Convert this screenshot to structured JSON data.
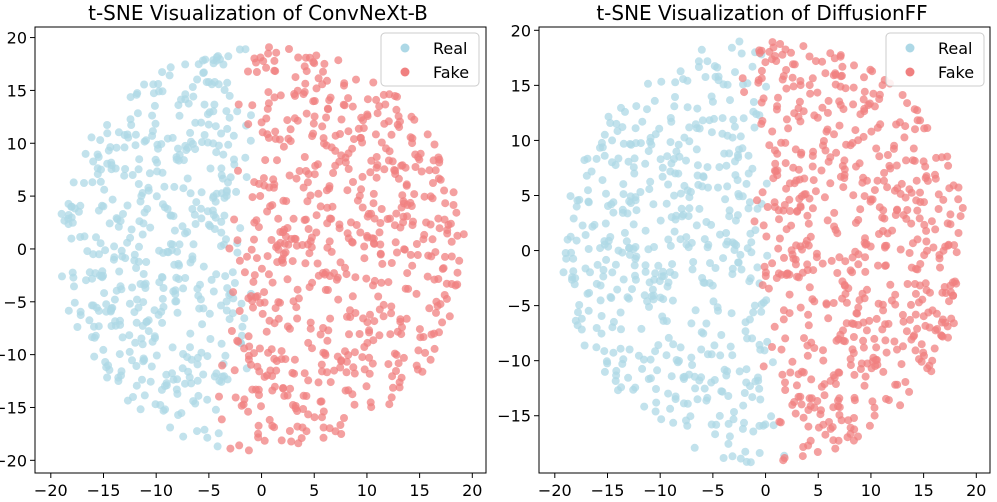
{
  "colors": {
    "real": "#add8e6",
    "fake": "#f08080",
    "axis": "#000000",
    "background": "#ffffff"
  },
  "chart_data": [
    {
      "type": "scatter",
      "title": "t-SNE Visualization of ConvNeXt-B",
      "xlabel": "",
      "ylabel": "",
      "xlim": [
        -21.5,
        21.3
      ],
      "ylim": [
        -21.2,
        21.0
      ],
      "xticks": [
        -20,
        -15,
        -10,
        -5,
        0,
        5,
        10,
        15,
        20
      ],
      "yticks": [
        -20,
        -15,
        -10,
        -5,
        0,
        5,
        10,
        15,
        20
      ],
      "grid": false,
      "legend": {
        "position": "top-right",
        "entries": [
          "Real",
          "Fake"
        ]
      },
      "series": [
        {
          "name": "Real",
          "color": "#add8e6",
          "generator": {
            "cx": -7.5,
            "cy": 0.0,
            "radius": 18.3,
            "count": 480,
            "boundary_slope": 0.05,
            "boundary_offset": -2.0,
            "side": "left",
            "seed": 11
          }
        },
        {
          "name": "Fake",
          "color": "#f08080",
          "generator": {
            "cx": 8.0,
            "cy": 0.0,
            "radius": 19.5,
            "count": 620,
            "boundary_slope": 0.05,
            "boundary_offset": -2.0,
            "side": "right",
            "seed": 23
          }
        }
      ]
    },
    {
      "type": "scatter",
      "title": "t-SNE Visualization of DiffusionFF",
      "xlabel": "",
      "ylabel": "",
      "xlim": [
        -21.5,
        21.3
      ],
      "ylim": [
        -20.2,
        20.3
      ],
      "xticks": [
        -20,
        -15,
        -10,
        -5,
        0,
        5,
        10,
        15,
        20
      ],
      "yticks": [
        -15,
        -10,
        -5,
        0,
        5,
        10,
        15,
        20
      ],
      "grid": false,
      "legend": {
        "position": "top-right",
        "entries": [
          "Real",
          "Fake"
        ]
      },
      "series": [
        {
          "name": "Real",
          "color": "#add8e6",
          "generator": {
            "cx": -7.0,
            "cy": 0.5,
            "radius": 18.0,
            "count": 500,
            "boundary_slope": -0.08,
            "boundary_offset": 0.0,
            "side": "left",
            "seed": 37
          }
        },
        {
          "name": "Fake",
          "color": "#f08080",
          "generator": {
            "cx": 9.0,
            "cy": 0.0,
            "radius": 19.0,
            "count": 600,
            "boundary_slope": -0.08,
            "boundary_offset": 0.0,
            "side": "right",
            "seed": 53
          }
        }
      ]
    }
  ]
}
